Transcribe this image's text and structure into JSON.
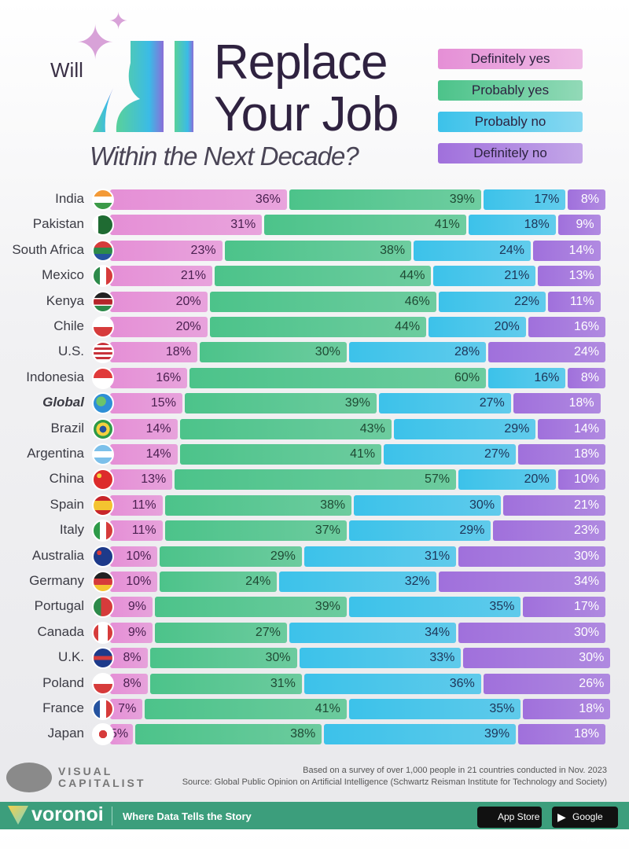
{
  "title": {
    "will": "Will",
    "ai": "AI",
    "line1": "Replace",
    "line2": "Your Job",
    "line3": "Within the Next Decade?"
  },
  "chart_data": {
    "type": "bar",
    "orientation": "horizontal",
    "stacked": true,
    "title": "Will AI Replace Your Job Within the Next Decade?",
    "legend_placement": "top-right",
    "categories": [
      "India",
      "Pakistan",
      "South Africa",
      "Mexico",
      "Kenya",
      "Chile",
      "U.S.",
      "Indonesia",
      "Global",
      "Brazil",
      "Argentina",
      "China",
      "Spain",
      "Italy",
      "Australia",
      "Germany",
      "Portugal",
      "Canada",
      "U.K.",
      "Poland",
      "France",
      "Japan"
    ],
    "series": [
      {
        "name": "Definitely yes",
        "color": "#e58fd6",
        "text_color": "#4a2050",
        "values": [
          36,
          31,
          23,
          21,
          20,
          20,
          18,
          16,
          15,
          14,
          14,
          13,
          11,
          11,
          10,
          10,
          9,
          9,
          8,
          8,
          7,
          5
        ]
      },
      {
        "name": "Probably yes",
        "color": "#4cc38a",
        "text_color": "#1f4a34",
        "values": [
          39,
          41,
          38,
          44,
          46,
          44,
          30,
          60,
          39,
          43,
          41,
          57,
          38,
          37,
          29,
          24,
          39,
          27,
          30,
          31,
          41,
          38
        ]
      },
      {
        "name": "Probably no",
        "color": "#3cc2ea",
        "text_color": "#1d3458",
        "values": [
          17,
          18,
          24,
          21,
          22,
          20,
          28,
          16,
          27,
          29,
          27,
          20,
          30,
          29,
          31,
          32,
          35,
          34,
          33,
          36,
          35,
          39
        ]
      },
      {
        "name": "Definitely no",
        "color": "#a070dc",
        "text_color": "#ffffff",
        "values": [
          8,
          9,
          14,
          13,
          11,
          16,
          24,
          8,
          18,
          14,
          18,
          10,
          21,
          23,
          30,
          34,
          17,
          30,
          30,
          26,
          18,
          18
        ]
      }
    ],
    "unit": "%"
  },
  "flags": [
    "india",
    "pakistan",
    "south-africa",
    "mexico",
    "kenya",
    "chile",
    "us",
    "indonesia",
    "globe",
    "brazil",
    "argentina",
    "china",
    "spain",
    "italy",
    "australia",
    "germany",
    "portugal",
    "canada",
    "uk",
    "poland",
    "france",
    "japan"
  ],
  "footer": {
    "note": "Based on a survey of over 1,000 people in 21 countries conducted in Nov. 2023",
    "source": "Source: Global Public Opinion on Artificial Intelligence (Schwartz Reisman Institute for Technology and Society)",
    "brand_line1": "VISUAL",
    "brand_line2": "CAPITALIST",
    "voronoi": "voronoi",
    "tagline": "Where Data Tells the Story",
    "app_store": "App Store",
    "google_play": "Google Play"
  }
}
